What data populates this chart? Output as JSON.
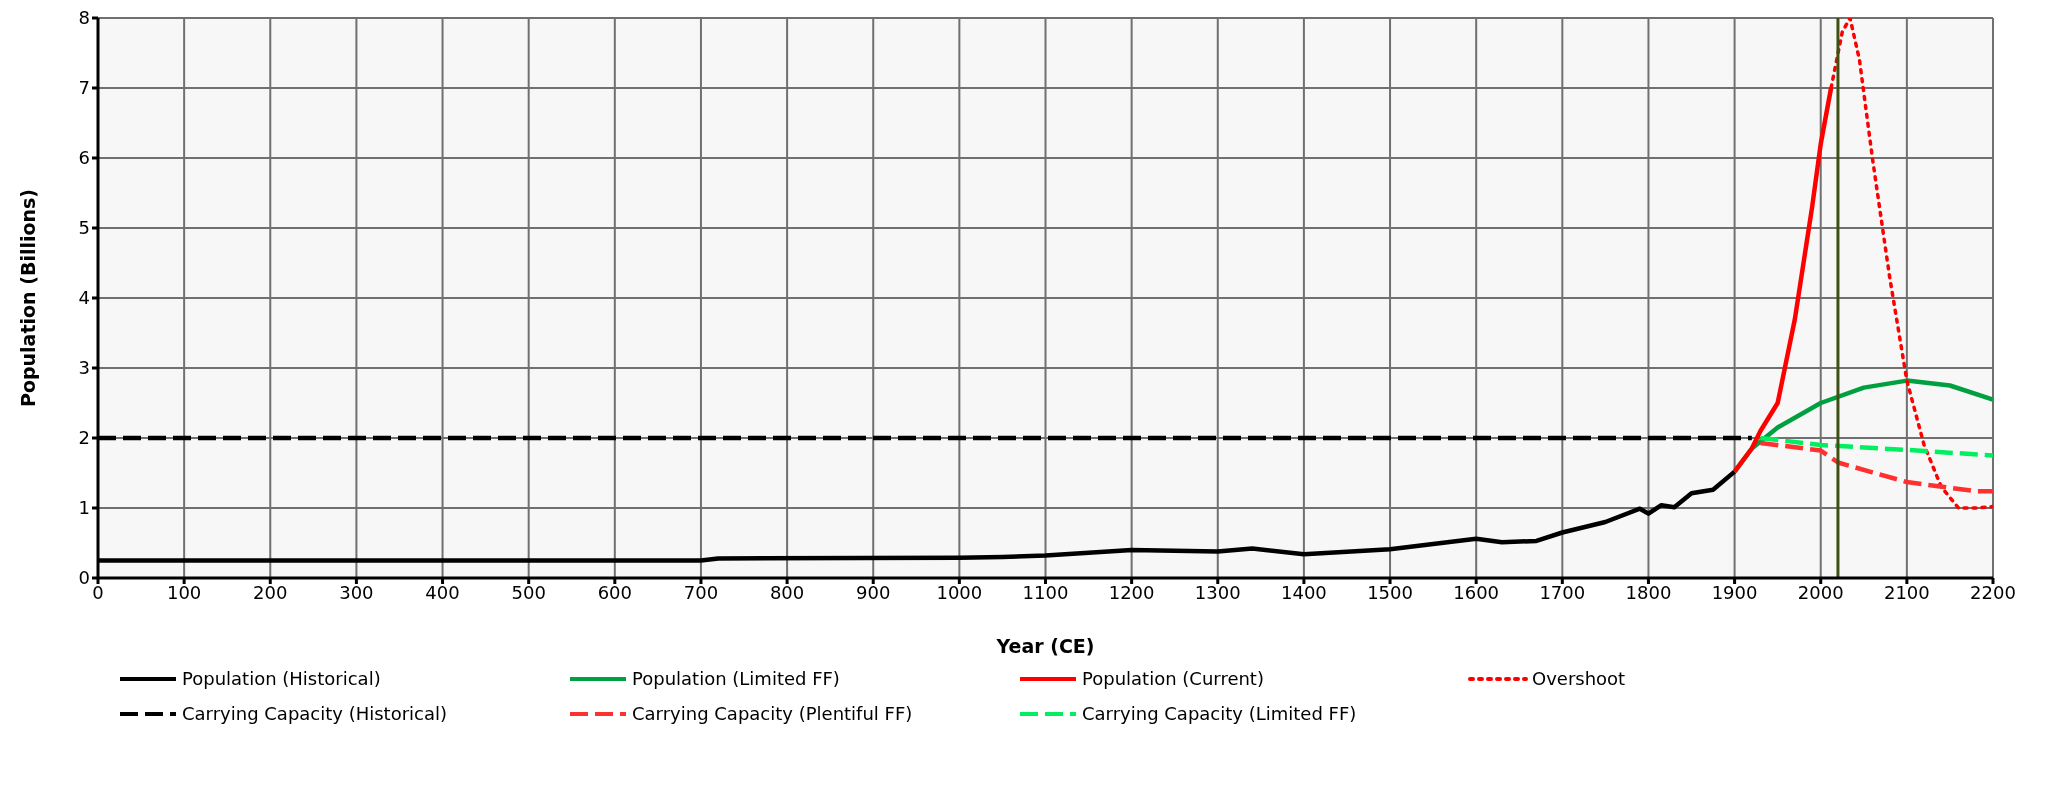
{
  "chart_data": {
    "type": "line",
    "xlabel": "Year (CE)",
    "ylabel": "Population (Billions)",
    "xlim": [
      0,
      2200
    ],
    "xticks": [
      0,
      100,
      200,
      300,
      400,
      500,
      600,
      700,
      800,
      900,
      1000,
      1100,
      1200,
      1300,
      1400,
      1500,
      1600,
      1700,
      1800,
      1900,
      2000,
      2100,
      2200
    ],
    "ylim": [
      0,
      8
    ],
    "yticks": [
      0,
      1,
      2,
      3,
      4,
      5,
      6,
      7,
      8
    ],
    "grid": true,
    "legend": "bottom",
    "marker": "none",
    "ref_lines": [
      {
        "axis": "x",
        "value": 2020,
        "color": "#3f4f14"
      }
    ],
    "series": [
      {
        "name": "Population (Historical)",
        "color": "#000000",
        "line_style": "solid",
        "x": [
          0,
          700,
          720,
          1000,
          1050,
          1100,
          1200,
          1300,
          1340,
          1400,
          1500,
          1600,
          1630,
          1670,
          1700,
          1750,
          1790,
          1800,
          1815,
          1830,
          1850,
          1875,
          1900
        ],
        "values": [
          0.25,
          0.25,
          0.28,
          0.29,
          0.3,
          0.32,
          0.4,
          0.38,
          0.42,
          0.34,
          0.41,
          0.56,
          0.51,
          0.53,
          0.65,
          0.8,
          0.99,
          0.92,
          1.04,
          1.01,
          1.21,
          1.26,
          1.52
        ]
      },
      {
        "name": "Population (Limited FF)",
        "color": "#00a040",
        "line_style": "solid",
        "x": [
          1900,
          1920,
          1950,
          2000,
          2050,
          2100,
          2150,
          2200
        ],
        "values": [
          1.52,
          1.85,
          2.15,
          2.5,
          2.72,
          2.82,
          2.75,
          2.55
        ]
      },
      {
        "name": "Population (Current)",
        "color": "#ff0000",
        "line_style": "solid",
        "x": [
          1900,
          1920,
          1930,
          1950,
          1970,
          1990,
          2000,
          2012
        ],
        "values": [
          1.52,
          1.85,
          2.1,
          2.5,
          3.7,
          5.3,
          6.2,
          7.0
        ]
      },
      {
        "name": "Overshoot",
        "color": "#ff0000",
        "line_style": "dotted",
        "x": [
          2012,
          2025,
          2034,
          2045,
          2060,
          2080,
          2100,
          2120,
          2140,
          2160,
          2180,
          2200
        ],
        "values": [
          7.0,
          7.8,
          8.0,
          7.4,
          6.0,
          4.3,
          2.82,
          1.9,
          1.3,
          1.0,
          1.0,
          1.02
        ]
      },
      {
        "name": "Carrying Capacity (Historical)",
        "color": "#000000",
        "line_style": "dashed",
        "x": [
          0,
          1920
        ],
        "values": [
          2.0,
          2.0
        ]
      },
      {
        "name": "Carrying Capacity (Plentiful FF)",
        "color": "#ff3030",
        "line_style": "dashed",
        "x": [
          1930,
          2000,
          2020,
          2060,
          2100,
          2180,
          2200
        ],
        "values": [
          1.93,
          1.82,
          1.65,
          1.51,
          1.37,
          1.24,
          1.24
        ]
      },
      {
        "name": "Carrying Capacity (Limited FF)",
        "color": "#00ee60",
        "line_style": "dashed",
        "x": [
          1930,
          2000,
          2100,
          2200
        ],
        "values": [
          2.0,
          1.9,
          1.83,
          1.75
        ]
      }
    ]
  }
}
